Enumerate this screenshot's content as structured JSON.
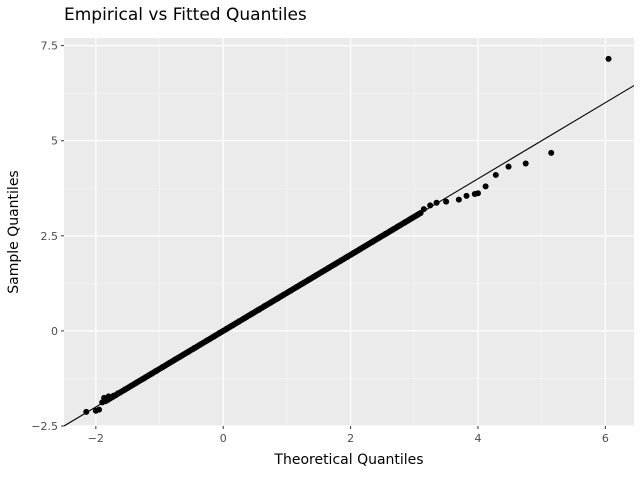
{
  "chart_data": {
    "type": "scatter",
    "title": "Empirical vs Fitted Quantiles",
    "xlabel": "Theoretical Quantiles",
    "ylabel": "Sample Quantiles",
    "xlim": [
      -2.5,
      6.45
    ],
    "ylim": [
      -2.5,
      7.7
    ],
    "x_ticks": [
      -2,
      0,
      2,
      4,
      6
    ],
    "x_tick_labels": [
      "−2",
      "0",
      "2",
      "4",
      "6"
    ],
    "y_ticks": [
      -2.5,
      0,
      2.5,
      5,
      7.5
    ],
    "y_tick_labels": [
      "−2.5",
      "0",
      "2.5",
      "5",
      "7.5"
    ],
    "grid": true,
    "reference_line": {
      "slope": 1.0,
      "intercept": 0.0
    },
    "points": [
      [
        -2.15,
        -2.13
      ],
      [
        -2.0,
        -2.1
      ],
      [
        -1.95,
        -2.07
      ],
      [
        -1.9,
        -1.88
      ],
      [
        -1.87,
        -1.76
      ],
      [
        -1.8,
        -1.72
      ],
      [
        -1.72,
        -1.7
      ],
      [
        -1.65,
        -1.64
      ],
      [
        -1.55,
        -1.55
      ],
      [
        -1.45,
        -1.45
      ],
      [
        -1.35,
        -1.35
      ],
      [
        -1.25,
        -1.25
      ],
      [
        -1.15,
        -1.15
      ],
      [
        -1.05,
        -1.05
      ],
      [
        -0.95,
        -0.95
      ],
      [
        -0.85,
        -0.85
      ],
      [
        -0.75,
        -0.75
      ],
      [
        -0.65,
        -0.65
      ],
      [
        -0.55,
        -0.55
      ],
      [
        -0.45,
        -0.45
      ],
      [
        -0.35,
        -0.35
      ],
      [
        -0.25,
        -0.25
      ],
      [
        -0.15,
        -0.15
      ],
      [
        -0.05,
        -0.05
      ],
      [
        0.05,
        0.05
      ],
      [
        0.15,
        0.15
      ],
      [
        0.25,
        0.25
      ],
      [
        0.35,
        0.35
      ],
      [
        0.45,
        0.45
      ],
      [
        0.55,
        0.55
      ],
      [
        0.65,
        0.65
      ],
      [
        0.75,
        0.75
      ],
      [
        0.85,
        0.85
      ],
      [
        0.95,
        0.95
      ],
      [
        1.05,
        1.05
      ],
      [
        1.15,
        1.15
      ],
      [
        1.25,
        1.25
      ],
      [
        1.35,
        1.35
      ],
      [
        1.45,
        1.45
      ],
      [
        1.55,
        1.55
      ],
      [
        1.65,
        1.65
      ],
      [
        1.75,
        1.75
      ],
      [
        1.85,
        1.85
      ],
      [
        1.95,
        1.95
      ],
      [
        2.05,
        2.05
      ],
      [
        2.15,
        2.15
      ],
      [
        2.25,
        2.25
      ],
      [
        2.35,
        2.35
      ],
      [
        2.45,
        2.45
      ],
      [
        2.55,
        2.55
      ],
      [
        2.65,
        2.65
      ],
      [
        2.75,
        2.75
      ],
      [
        2.85,
        2.85
      ],
      [
        2.95,
        2.95
      ],
      [
        3.05,
        3.05
      ],
      [
        3.15,
        3.2
      ],
      [
        3.25,
        3.3
      ],
      [
        3.35,
        3.37
      ],
      [
        3.5,
        3.4
      ],
      [
        3.7,
        3.45
      ],
      [
        3.82,
        3.55
      ],
      [
        3.95,
        3.6
      ],
      [
        4.0,
        3.62
      ],
      [
        4.12,
        3.8
      ],
      [
        4.28,
        4.1
      ],
      [
        4.48,
        4.32
      ],
      [
        4.75,
        4.4
      ],
      [
        5.15,
        4.68
      ],
      [
        6.05,
        7.15
      ]
    ]
  }
}
